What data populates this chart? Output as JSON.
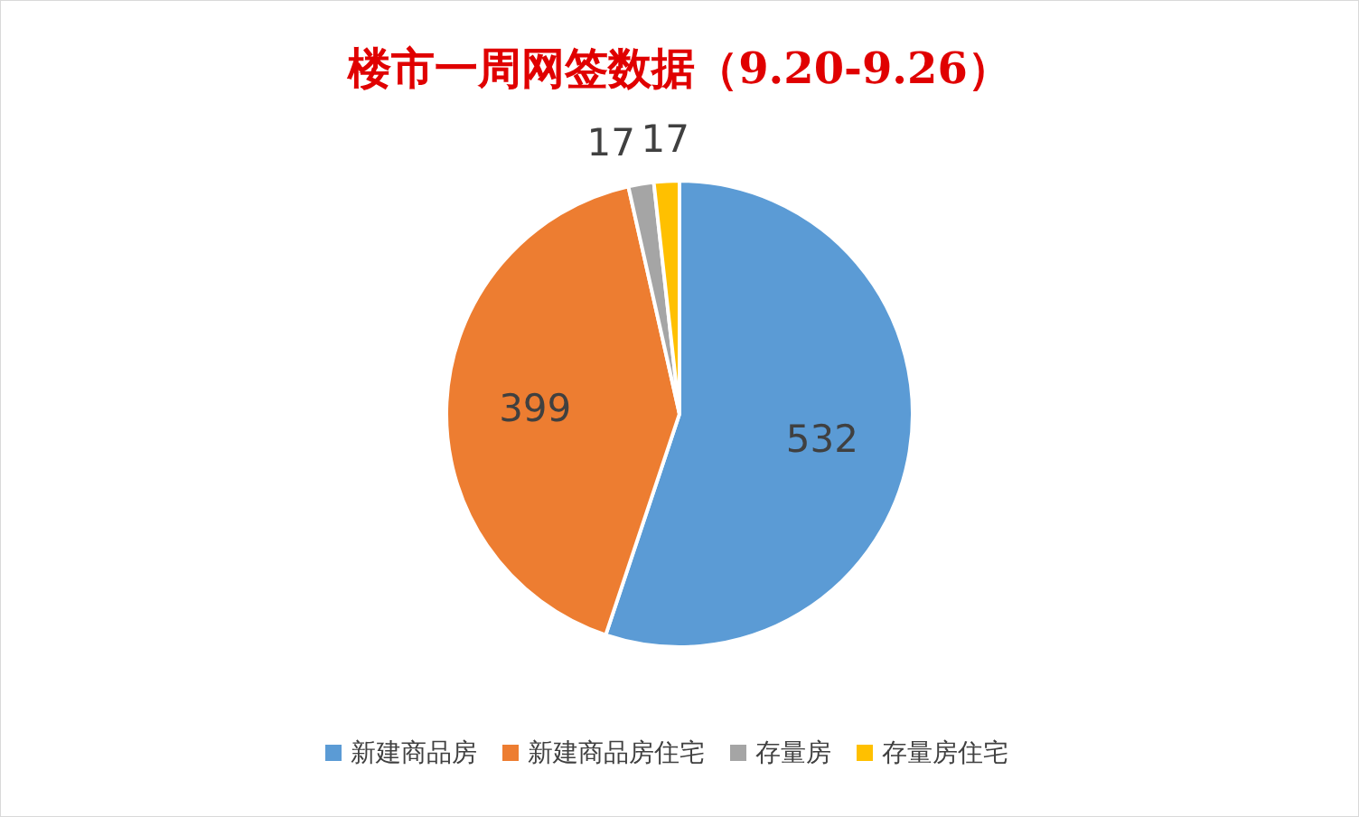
{
  "chart_data": {
    "type": "pie",
    "title": "楼市一周网签数据（9.20-9.26）",
    "categories": [
      "新建商品房",
      "新建商品房住宅",
      "存量房",
      "存量房住宅"
    ],
    "values": [
      532,
      399,
      17,
      17
    ],
    "colors": [
      "#5b9bd5",
      "#ed7d31",
      "#a5a5a5",
      "#ffc000"
    ],
    "data_labels": true,
    "legend": "bottom"
  }
}
